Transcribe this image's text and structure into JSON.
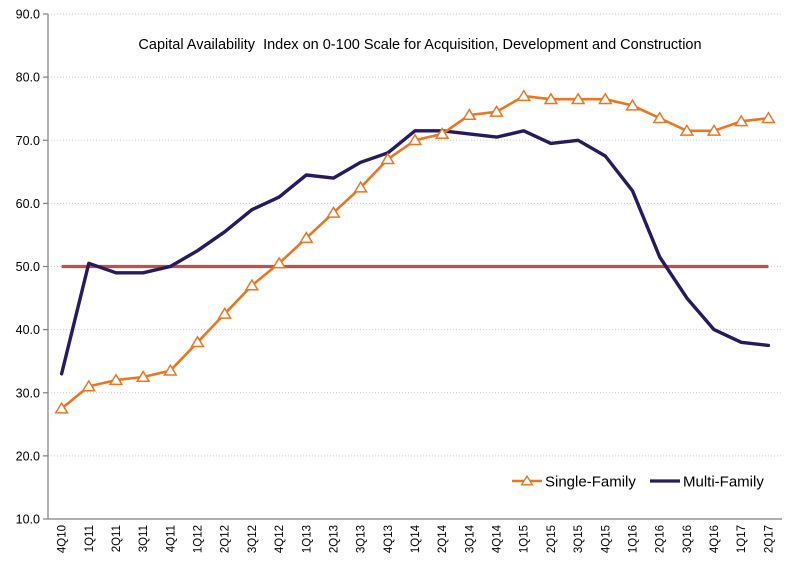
{
  "chart_data": {
    "type": "line",
    "title": "Capital Availability  Index on 0-100 Scale for Acquisition, Development and Construction",
    "categories": [
      "4Q10",
      "1Q11",
      "2Q11",
      "3Q11",
      "4Q11",
      "1Q12",
      "2Q12",
      "3Q12",
      "4Q12",
      "1Q13",
      "2Q13",
      "3Q13",
      "4Q13",
      "1Q14",
      "2Q14",
      "3Q14",
      "4Q14",
      "1Q15",
      "2Q15",
      "3Q15",
      "4Q15",
      "1Q16",
      "2Q16",
      "3Q16",
      "4Q16",
      "1Q17",
      "2Q17"
    ],
    "series": [
      {
        "name": "Single-Family",
        "color": "#E87722",
        "marker": "triangle",
        "marker_fill": "#FFFFFF",
        "values": [
          27.5,
          31,
          32,
          32.5,
          33.5,
          38,
          42.5,
          47,
          50.5,
          54.5,
          58.5,
          62.5,
          67,
          70,
          71,
          74,
          74.5,
          77,
          76.5,
          76.5,
          76.5,
          75.5,
          73.5,
          71.5,
          71.5,
          73,
          73.5
        ]
      },
      {
        "name": "Multi-Family",
        "color": "#291A60",
        "marker": "none",
        "values": [
          33,
          50.5,
          49,
          49,
          50,
          52.5,
          55.5,
          59,
          61,
          64.5,
          64,
          66.5,
          68,
          71.5,
          71.5,
          71,
          70.5,
          71.5,
          69.5,
          70,
          67.5,
          62,
          51.5,
          45,
          40,
          38,
          37.5
        ]
      }
    ],
    "reference_line": {
      "value": 50.0,
      "color": "#C0504D"
    },
    "y_axis": {
      "min": 10,
      "max": 90,
      "step": 10,
      "tick_labels": [
        "90.0",
        "80.0",
        "70.0",
        "60.0",
        "50.0",
        "40.0",
        "30.0",
        "20.0",
        "10.0"
      ]
    },
    "x_axis": {
      "label_rotation_deg": -90
    },
    "legend": {
      "position": "inside-bottom-right",
      "entries": [
        "Single-Family",
        "Multi-Family"
      ]
    },
    "grid": true,
    "grid_color": "#C9C9C9",
    "axis_color": "#808080"
  }
}
